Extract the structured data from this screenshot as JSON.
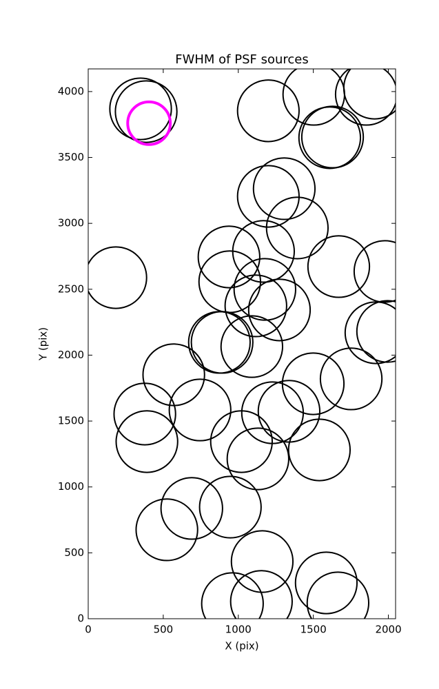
{
  "chart_data": {
    "type": "scatter",
    "title": "FWHM of PSF sources",
    "x_label": "X (pix)",
    "y_label": "Y (pix)",
    "xlim": [
      0,
      2048
    ],
    "ylim": [
      0,
      4172
    ],
    "xticks": [
      0,
      500,
      1000,
      1500,
      2000
    ],
    "yticks": [
      0,
      500,
      1000,
      1500,
      2000,
      2500,
      3000,
      3500,
      4000
    ],
    "series": [
      {
        "color": "#000000",
        "x": [
          349,
          386,
          1200,
          1503,
          1853,
          1908,
          1609,
          1628,
          1200,
          1306,
          1393,
          938,
          1168,
          1669,
          1977,
          184,
          943,
          1177,
          1117,
          1274,
          874,
          892,
          1090,
          1917,
          1995,
          570,
          1499,
          1752,
          745,
          377,
          1228,
          1338,
          1021,
          1131,
          1540,
          391,
          690,
          947,
          524,
          1159,
          1586,
          961,
          1154,
          1664
        ],
        "y": [
          3869,
          3848,
          3854,
          3979,
          3979,
          4026,
          3650,
          3655,
          3205,
          3263,
          2965,
          2745,
          2787,
          2672,
          2635,
          2588,
          2557,
          2499,
          2374,
          2343,
          2097,
          2097,
          2065,
          2170,
          2180,
          1851,
          1783,
          1820,
          1584,
          1553,
          1563,
          1574,
          1344,
          1213,
          1281,
          1344,
          837,
          847,
          675,
          434,
          272,
          115,
          131,
          120
        ],
        "sizes": [
          205,
          205,
          205,
          205,
          205,
          205,
          205,
          205,
          205,
          205,
          205,
          205,
          205,
          205,
          205,
          205,
          205,
          205,
          205,
          205,
          205,
          205,
          205,
          205,
          205,
          205,
          205,
          205,
          205,
          205,
          205,
          205,
          205,
          205,
          205,
          205,
          205,
          205,
          205,
          205,
          205,
          205,
          205,
          205
        ]
      },
      {
        "color": "#ff00ff",
        "x": [
          405
        ],
        "y": [
          3760
        ],
        "sizes": [
          142
        ]
      }
    ]
  }
}
